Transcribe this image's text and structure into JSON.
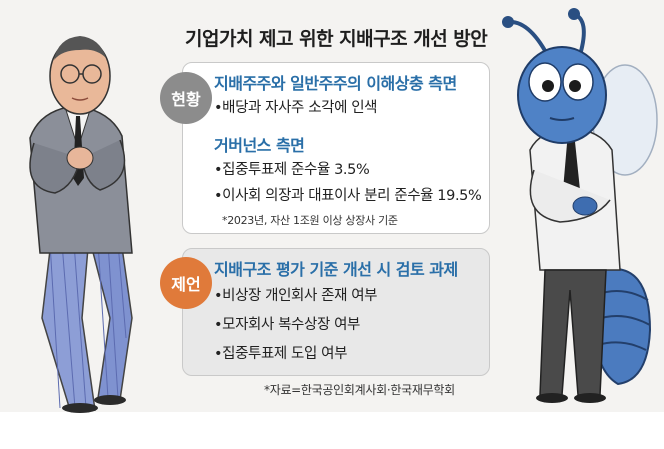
{
  "title": "기업가치 제고 위한 지배구조 개선 방안",
  "current": {
    "badge": "현황",
    "section1_title": "지배주주와 일반주주의 이해상충 측면",
    "section1_items": [
      "•배당과 자사주 소각에 인색"
    ],
    "section2_title": "거버넌스 측면",
    "section2_items": [
      "•집중투표제 준수율 3.5%",
      "•이사회 의장과 대표이사 분리 준수율 19.5%"
    ],
    "note": "*2023년, 자산 1조원 이상 상장사 기준"
  },
  "proposal": {
    "badge": "제언",
    "section_title": "지배구조 평가 기준 개선 시 검토 과제",
    "items": [
      "•비상장 개인회사 존재 여부",
      "•모자회사 복수상장 여부",
      "•집중투표제 도입 여부"
    ]
  },
  "source": "*자료=한국공인회계사회·한국재무학회",
  "colors": {
    "background": "#f4f3f1",
    "section_title": "#2a6fa8",
    "badge_current": "#8c8c8c",
    "badge_proposal": "#e07a3a",
    "proposal_box": "#e8e8e8"
  }
}
